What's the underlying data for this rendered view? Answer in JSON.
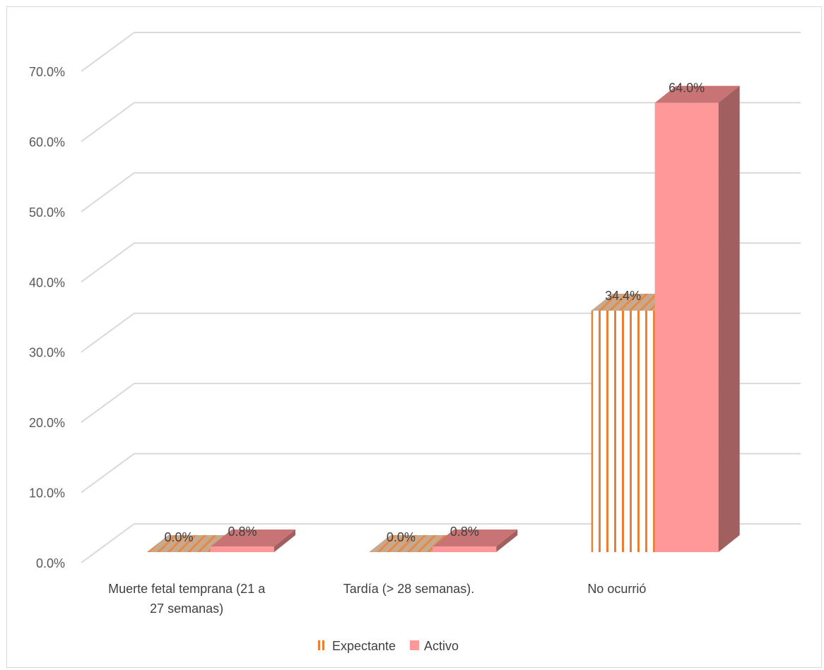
{
  "chart_data": {
    "type": "bar",
    "three_d": true,
    "categories": [
      [
        "Muerte fetal temprana  (21 a",
        "27 semanas)"
      ],
      [
        "Tardía (> 28 semanas)."
      ],
      [
        "No ocurrió"
      ]
    ],
    "series": [
      {
        "name": "Expectante",
        "values": [
          0.0,
          0.0,
          34.4
        ],
        "labels": [
          "0.0%",
          "0.0%",
          "34.4%"
        ],
        "color": "#ED7D31",
        "pattern": "vertical-stripes"
      },
      {
        "name": "Activo",
        "values": [
          0.8,
          0.8,
          64.0
        ],
        "labels": [
          "0.8%",
          "0.8%",
          "64.0%"
        ],
        "color": "#FF9999"
      }
    ],
    "ylim": [
      0,
      70
    ],
    "yticks": [
      "0.0%",
      "10.0%",
      "20.0%",
      "30.0%",
      "40.0%",
      "50.0%",
      "60.0%",
      "70.0%"
    ],
    "grid": true,
    "legend_position": "bottom",
    "title": "",
    "xlabel": "",
    "ylabel": ""
  }
}
